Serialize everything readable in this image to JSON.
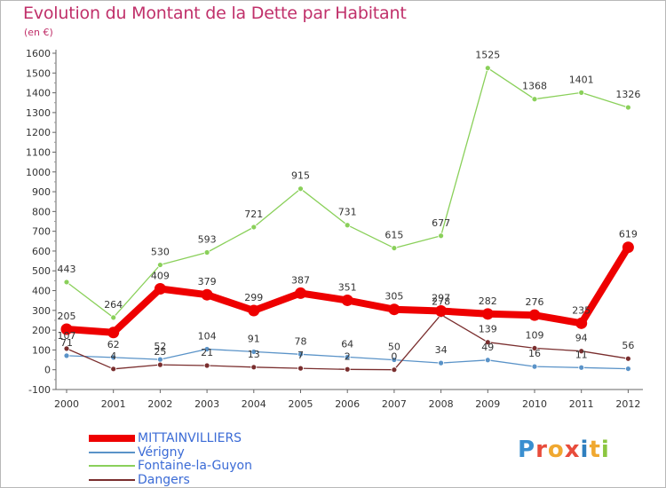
{
  "title": "Evolution du Montant de la Dette par Habitant",
  "subtitle": "(en €)",
  "logo": {
    "text": "Proxiti",
    "letters": [
      "P",
      "r",
      "o",
      "x",
      "i",
      "t",
      "i"
    ],
    "colors": [
      "#3a8fd0",
      "#e84c3c",
      "#f0a830",
      "#e84c3c",
      "#2f7fbf",
      "#f0a830",
      "#8cc640"
    ]
  },
  "chart_data": {
    "type": "line",
    "title": "Evolution du Montant de la Dette par Habitant",
    "subtitle": "(en €)",
    "xlabel": "",
    "ylabel": "",
    "categories": [
      "2000",
      "2001",
      "2002",
      "2003",
      "2004",
      "2005",
      "2006",
      "2007",
      "2008",
      "2009",
      "2010",
      "2011",
      "2012"
    ],
    "ylim": [
      -100,
      1600
    ],
    "yticks": [
      -100,
      0,
      100,
      200,
      300,
      400,
      500,
      600,
      700,
      800,
      900,
      1000,
      1100,
      1200,
      1300,
      1400,
      1500,
      1600
    ],
    "grid": false,
    "legend_position": "bottom-left",
    "series": [
      {
        "name": "MITTAINVILLIERS",
        "values": [
          205,
          188,
          409,
          379,
          299,
          387,
          351,
          305,
          297,
          282,
          276,
          235,
          619
        ],
        "labels": [
          "205",
          "",
          "409",
          "379",
          "299",
          "387",
          "351",
          "305",
          "297",
          "282",
          "276",
          "235",
          "619"
        ],
        "color": "#ee0000",
        "emphasis": true
      },
      {
        "name": "Vérigny",
        "values": [
          71,
          62,
          52,
          104,
          91,
          78,
          64,
          50,
          34,
          49,
          16,
          11,
          5
        ],
        "labels": [
          "71",
          "62",
          "52",
          "104",
          "91",
          "78",
          "64",
          "50",
          "34",
          "49",
          "16",
          "11",
          ""
        ],
        "color": "#5a93c8",
        "emphasis": false
      },
      {
        "name": "Fontaine-la-Guyon",
        "values": [
          443,
          264,
          530,
          593,
          721,
          915,
          731,
          615,
          677,
          1525,
          1368,
          1401,
          1326
        ],
        "labels": [
          "443",
          "264",
          "530",
          "593",
          "721",
          "915",
          "731",
          "615",
          "677",
          "1525",
          "1368",
          "1401",
          "1326"
        ],
        "color": "#8ad05a",
        "emphasis": false
      },
      {
        "name": "Dangers",
        "values": [
          107,
          4,
          25,
          21,
          13,
          7,
          2,
          0,
          278,
          139,
          109,
          94,
          56
        ],
        "labels": [
          "107",
          "4",
          "25",
          "21",
          "13",
          "7",
          "2",
          "0",
          "278",
          "139",
          "109",
          "94",
          "56"
        ],
        "color": "#7a2e2e",
        "emphasis": false
      }
    ]
  }
}
